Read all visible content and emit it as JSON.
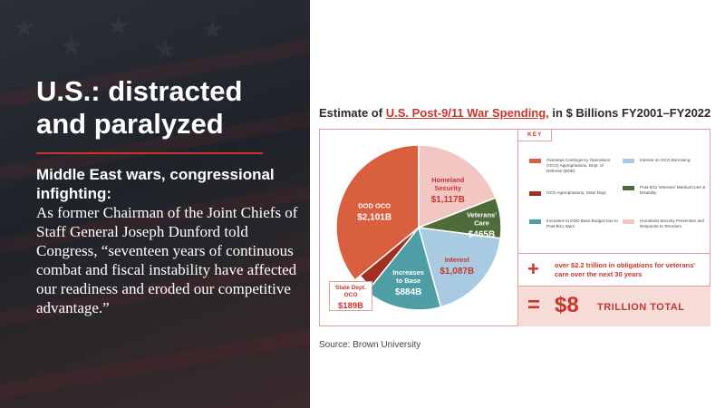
{
  "slide": {
    "title": "U.S.: distracted and paralyzed",
    "body_lead": "Middle East wars, congressional infighting:",
    "body_quote": "As former Chairman of the Joint Chiefs of Staff General Joseph Dunford told Congress, “seventeen years of continuous combat and fiscal instability have affected our readiness and eroded our competitive advantage.”",
    "source": "Source: Brown University"
  },
  "chart_data": {
    "type": "pie",
    "title_prefix": "Estimate of ",
    "title_highlight": "U.S. Post-9/11 War Spending,",
    "title_suffix": " in $ Billions FY2001–FY2022",
    "unit": "B",
    "slices": [
      {
        "label_lines": [
          "DOD OCO"
        ],
        "value": 2101,
        "display": "2,101",
        "color": "#d9603f",
        "key": "Overseas Contingency Operations (OCO) Appropriations, Dept. of Defense (DOD)"
      },
      {
        "label_lines": [
          "Homeland",
          "Security"
        ],
        "value": 1117,
        "display": "1,117",
        "color": "#f2c6c2",
        "key": "Homeland Security Prevention and Response to Terrorism"
      },
      {
        "label_lines": [
          "Veterans'",
          "Care"
        ],
        "value": 465,
        "display": "465",
        "color": "#4e6b3a",
        "key": "Post-9/11 Veterans' Medical Care & Disability"
      },
      {
        "label_lines": [
          "Interest"
        ],
        "value": 1087,
        "display": "1,087",
        "color": "#a9cbe2",
        "key": "Interest on OCO Borrowing"
      },
      {
        "label_lines": [
          "Increases",
          "to Base"
        ],
        "value": 884,
        "display": "884",
        "color": "#4f9ea6",
        "key": "Increases to DOD Base Budget Due to Post-9/11 Wars"
      },
      {
        "label_lines": [
          "State Dept.",
          "OCO"
        ],
        "value": 189,
        "display": "189",
        "color": "#a32e24",
        "key": "OCO Appropriations, State Dept."
      }
    ],
    "key_title": "KEY",
    "additional_note": "over $2.2 trillion in obligations for veterans' care over the next 30 years",
    "total_amount": "$8",
    "total_label": "TRILLION TOTAL",
    "plus_symbol": "+",
    "equals_symbol": "="
  }
}
